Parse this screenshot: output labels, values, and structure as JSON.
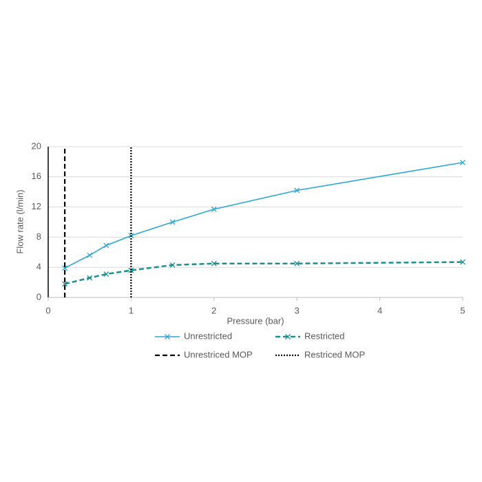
{
  "chart_data": {
    "type": "line",
    "x_label": "Pressure (bar)",
    "y_label": "Flow rate (l/min)",
    "xlim": [
      0,
      5
    ],
    "xticks": [
      0,
      1,
      2,
      3,
      4,
      5
    ],
    "ylim": [
      0,
      20
    ],
    "yticks": [
      0,
      4,
      8,
      12,
      16,
      20
    ],
    "grid": true,
    "legend": "bottom",
    "series": [
      {
        "name": "Unrestricted",
        "color": "#2aa7d6",
        "dash": "solid",
        "marker": "x",
        "x": [
          0.2,
          0.5,
          0.7,
          1,
          1.5,
          2,
          3,
          5
        ],
        "values": [
          3.9,
          5.6,
          6.9,
          8.2,
          10.0,
          11.7,
          14.2,
          17.9
        ]
      },
      {
        "name": "Restricted",
        "color": "#17908f",
        "dash": "dashed",
        "marker": "x",
        "x": [
          0.2,
          0.5,
          0.7,
          1,
          1.5,
          2,
          3,
          5
        ],
        "values": [
          1.8,
          2.6,
          3.1,
          3.6,
          4.3,
          4.5,
          4.5,
          4.7
        ]
      },
      {
        "name": "Unrestriced MOP",
        "color": "#000000",
        "dash": "dashed",
        "marker": "none",
        "x": [
          0.2,
          0.2
        ],
        "values": [
          0,
          20
        ]
      },
      {
        "name": "Restriced MOP",
        "color": "#000000",
        "dash": "dotted",
        "marker": "none",
        "x": [
          1,
          1
        ],
        "values": [
          0,
          20
        ]
      }
    ]
  }
}
